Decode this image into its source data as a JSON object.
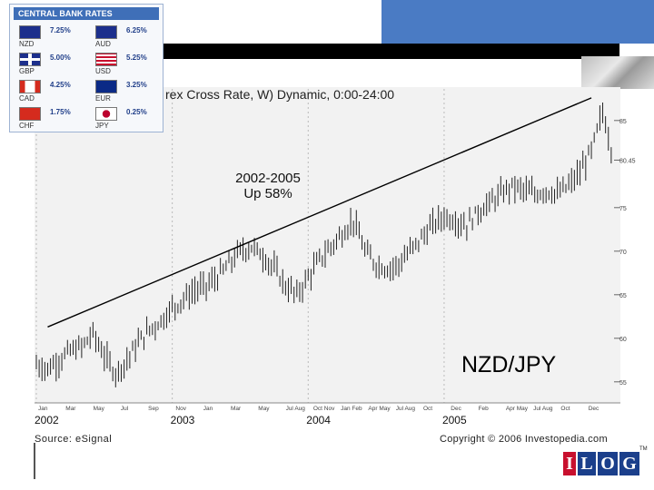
{
  "rates_panel": {
    "title": "CENTRAL BANK RATES",
    "items": [
      {
        "code": "NZD",
        "rate": "7.25%",
        "flag": "nz-flag"
      },
      {
        "code": "AUD",
        "rate": "6.25%",
        "flag": "au-flag"
      },
      {
        "code": "GBP",
        "rate": "5.00%",
        "flag": "gb-flag"
      },
      {
        "code": "USD",
        "rate": "5.25%",
        "flag": "us-flag"
      },
      {
        "code": "CAD",
        "rate": "4.25%",
        "flag": "ca-flag"
      },
      {
        "code": "EUR",
        "rate": "3.25%",
        "flag": "eu-flag"
      },
      {
        "code": "CHF",
        "rate": "1.75%",
        "flag": "ch-flag"
      },
      {
        "code": "JPY",
        "rate": "0.25%",
        "flag": "jp-flag"
      }
    ]
  },
  "chart_data": {
    "type": "line",
    "title": "rex Cross Rate, W) Dynamic, 0:00-24:00",
    "pair_label": "NZD/JPY",
    "annotation": [
      "2002-2005",
      "Up 58%"
    ],
    "x_labels": [
      "Jan",
      "Mar",
      "May",
      "Jul",
      "Sep",
      "Nov",
      "Jan",
      "Mar",
      "May",
      "Jul Aug",
      "Oct Nov",
      "Jan Feb",
      "Apr May",
      "Jul Aug",
      "Oct",
      "Dec",
      "Feb",
      "Apr May",
      "Jul Aug",
      "Oct",
      "Dec"
    ],
    "year_labels": [
      {
        "year": "2002",
        "month_index": 0
      },
      {
        "year": "2003",
        "month_index": 12
      },
      {
        "year": "2004",
        "month_index": 24
      },
      {
        "year": "2005",
        "month_index": 36
      }
    ],
    "y_ticks": [
      55,
      60,
      65,
      70,
      75,
      80.45,
      85
    ],
    "ylim": [
      53,
      88
    ],
    "series": [
      {
        "values": [
          [
            0,
            57.0
          ],
          [
            1,
            56.5
          ],
          [
            2,
            57.5
          ],
          [
            3,
            58.5
          ],
          [
            4,
            59.0
          ],
          [
            5,
            60.5
          ],
          [
            6,
            58.0
          ],
          [
            7,
            56.0
          ],
          [
            8,
            57.5
          ],
          [
            9,
            59.5
          ],
          [
            10,
            61.0
          ],
          [
            11,
            62.0
          ],
          [
            12,
            63.5
          ],
          [
            13,
            64.5
          ],
          [
            14,
            65.5
          ],
          [
            15,
            66.0
          ],
          [
            16,
            67.0
          ],
          [
            17,
            68.5
          ],
          [
            18,
            70.0
          ],
          [
            19,
            70.5
          ],
          [
            20,
            69.5
          ],
          [
            21,
            68.0
          ],
          [
            22,
            66.0
          ],
          [
            23,
            65.0
          ],
          [
            24,
            67.0
          ],
          [
            25,
            69.0
          ],
          [
            26,
            70.5
          ],
          [
            27,
            72.0
          ],
          [
            28,
            73.5
          ],
          [
            29,
            70.0
          ],
          [
            30,
            68.5
          ],
          [
            31,
            68.0
          ],
          [
            32,
            68.5
          ],
          [
            33,
            70.0
          ],
          [
            34,
            71.5
          ],
          [
            35,
            73.0
          ],
          [
            36,
            74.0
          ],
          [
            37,
            73.5
          ],
          [
            38,
            73.0
          ],
          [
            39,
            74.5
          ],
          [
            40,
            75.5
          ],
          [
            41,
            76.5
          ],
          [
            42,
            77.5
          ],
          [
            43,
            77.0
          ],
          [
            44,
            76.5
          ],
          [
            45,
            77.0
          ],
          [
            46,
            76.5
          ],
          [
            47,
            77.5
          ],
          [
            48,
            79.0
          ],
          [
            49,
            81.5
          ],
          [
            50,
            86.0
          ],
          [
            51,
            80.5
          ]
        ]
      }
    ],
    "trend_line": {
      "from": [
        1,
        61.3
      ],
      "to": [
        49,
        87.6
      ]
    }
  },
  "footer": {
    "source": "Source: eSignal",
    "copyright": "Copyright © 2006 Investopedia.com"
  },
  "logo": {
    "letters": [
      "I",
      "L",
      "O",
      "G"
    ],
    "tm": "TM"
  },
  "colors": {
    "panel_header": "#3f6fb8",
    "blue_band": "#4a7bc4",
    "chart_bg": "#f2f2f2",
    "candles": "#222222"
  }
}
